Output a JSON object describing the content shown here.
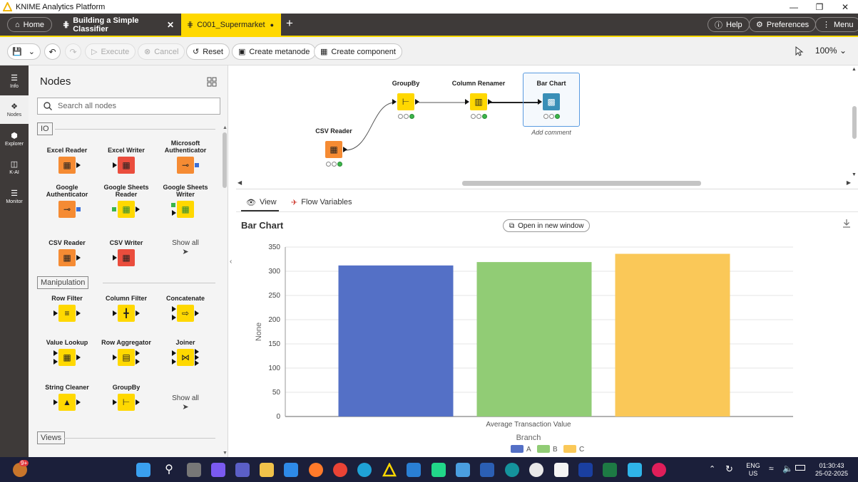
{
  "window": {
    "title": "KNIME Analytics Platform"
  },
  "tabbar": {
    "home_label": "Home",
    "tabs": [
      {
        "label": "Building a Simple Classifier",
        "close": "✕"
      },
      {
        "label": "C001_Supermarket",
        "close": "●"
      }
    ],
    "new_tab": "+",
    "help_label": "Help",
    "preferences_label": "Preferences",
    "menu_label": "Menu"
  },
  "toolbar": {
    "execute_label": "Execute",
    "cancel_label": "Cancel",
    "reset_label": "Reset",
    "create_metanode_label": "Create metanode",
    "create_component_label": "Create component",
    "zoom": "100%"
  },
  "rail": [
    {
      "label": "Info"
    },
    {
      "label": "Nodes"
    },
    {
      "label": "Explorer"
    },
    {
      "label": "K-AI"
    },
    {
      "label": "Monitor"
    }
  ],
  "nodes_panel": {
    "title": "Nodes",
    "search_placeholder": "Search all nodes",
    "sections": [
      {
        "label": "IO",
        "nodes": [
          "Excel Reader",
          "Excel Writer",
          "Microsoft Authenticator",
          "Google Authenticator",
          "Google Sheets Reader",
          "Google Sheets Writer",
          "CSV Reader",
          "CSV Writer"
        ]
      },
      {
        "label": "Manipulation",
        "nodes": [
          "Row Filter",
          "Column Filter",
          "Concatenate",
          "Value Lookup",
          "Row Aggregator",
          "Joiner",
          "String Cleaner",
          "GroupBy"
        ]
      },
      {
        "label": "Views"
      }
    ],
    "show_all": "Show all"
  },
  "workflow": {
    "nodes": [
      {
        "label": "CSV Reader"
      },
      {
        "label": "GroupBy"
      },
      {
        "label": "Column Renamer"
      },
      {
        "label": "Bar Chart"
      }
    ],
    "add_comment": "Add comment"
  },
  "view_panel": {
    "tabs": [
      {
        "label": "View"
      },
      {
        "label": "Flow Variables"
      }
    ],
    "chart_title": "Bar Chart",
    "open_new_window": "Open in new window"
  },
  "chart_data": {
    "type": "bar",
    "categories": [
      "Average Transaction Value"
    ],
    "series": [
      {
        "name": "A",
        "values": [
          312
        ],
        "color": "#5470c6"
      },
      {
        "name": "B",
        "values": [
          319
        ],
        "color": "#91cc75"
      },
      {
        "name": "C",
        "values": [
          336
        ],
        "color": "#fac858"
      }
    ],
    "xlabel": "Branch",
    "ylabel": "None",
    "ylim": [
      0,
      350
    ],
    "yticks": [
      "0",
      "50",
      "100",
      "150",
      "200",
      "250",
      "300",
      "350"
    ],
    "grid": true,
    "legend_position": "bottom"
  },
  "taskbar": {
    "badge": "9+",
    "lang_line1": "ENG",
    "lang_line2": "US",
    "time": "01:30:43",
    "date": "25-02-2025"
  },
  "colors": {
    "knime_yellow": "#ffd800",
    "dark_chrome": "#3e3a39",
    "io_orange": "#f58b33",
    "manipulation_yellow": "#ffd800",
    "writer_red": "#ea4d3d"
  }
}
